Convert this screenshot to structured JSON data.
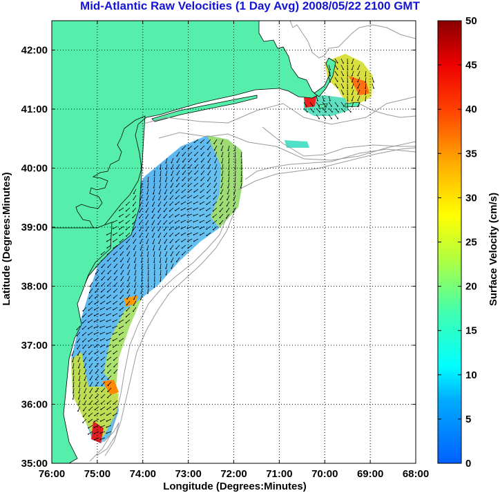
{
  "title": "Mid-Atlantic Raw Velocities (1 Day Avg) 2008/05/22 2100 GMT",
  "map": {
    "xlabel": "Longitude (Degrees:Minutes)",
    "ylabel": "Latitude (Degrees:Minutes)",
    "x_ticks": [
      "76:00",
      "75:00",
      "74:00",
      "73:00",
      "72:00",
      "71:00",
      "70:00",
      "69:00",
      "68:00"
    ],
    "y_ticks": [
      "35:00",
      "36:00",
      "37:00",
      "38:00",
      "39:00",
      "40:00",
      "41:00",
      "42:00"
    ],
    "land_color": "#55eeaa",
    "grid": "dotted"
  },
  "colorbar": {
    "label": "Surface Velocity (cm/s)",
    "ticks": [
      "0",
      "5",
      "10",
      "15",
      "20",
      "25",
      "30",
      "35",
      "40",
      "45",
      "50"
    ],
    "range": [
      0,
      50
    ],
    "colormap": "jet"
  }
}
